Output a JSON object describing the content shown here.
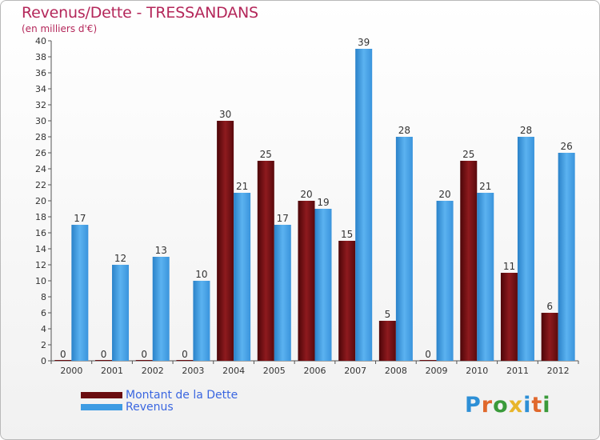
{
  "header": {
    "title": "Revenus/Dette - TRESSANDANS",
    "subtitle": "(en milliers d'€)"
  },
  "legend": {
    "dette_label": "Montant de la Dette",
    "revenus_label": "Revenus"
  },
  "logo": {
    "text": "Proxiti"
  },
  "colors": {
    "dette": "#7a1114",
    "revenus": "#3d9be3",
    "title": "#b4275a",
    "legend_text": "#3a66e0"
  },
  "chart_data": {
    "type": "bar",
    "title": "Revenus/Dette - TRESSANDANS",
    "subtitle": "(en milliers d'€)",
    "xlabel": "",
    "ylabel": "",
    "ylim": [
      0,
      40
    ],
    "yticks": [
      0,
      2,
      4,
      6,
      8,
      10,
      12,
      14,
      16,
      18,
      20,
      22,
      24,
      26,
      28,
      30,
      32,
      34,
      36,
      38,
      40
    ],
    "grid": false,
    "legend_position": "bottom-left",
    "categories": [
      "2000",
      "2001",
      "2002",
      "2003",
      "2004",
      "2005",
      "2006",
      "2007",
      "2008",
      "2009",
      "2010",
      "2011",
      "2012"
    ],
    "series": [
      {
        "name": "Montant de la Dette",
        "values": [
          0,
          0,
          0,
          0,
          30,
          25,
          20,
          15,
          5,
          0,
          25,
          11,
          6
        ]
      },
      {
        "name": "Revenus",
        "values": [
          17,
          12,
          13,
          10,
          21,
          17,
          19,
          39,
          28,
          20,
          21,
          28,
          26
        ]
      }
    ]
  }
}
